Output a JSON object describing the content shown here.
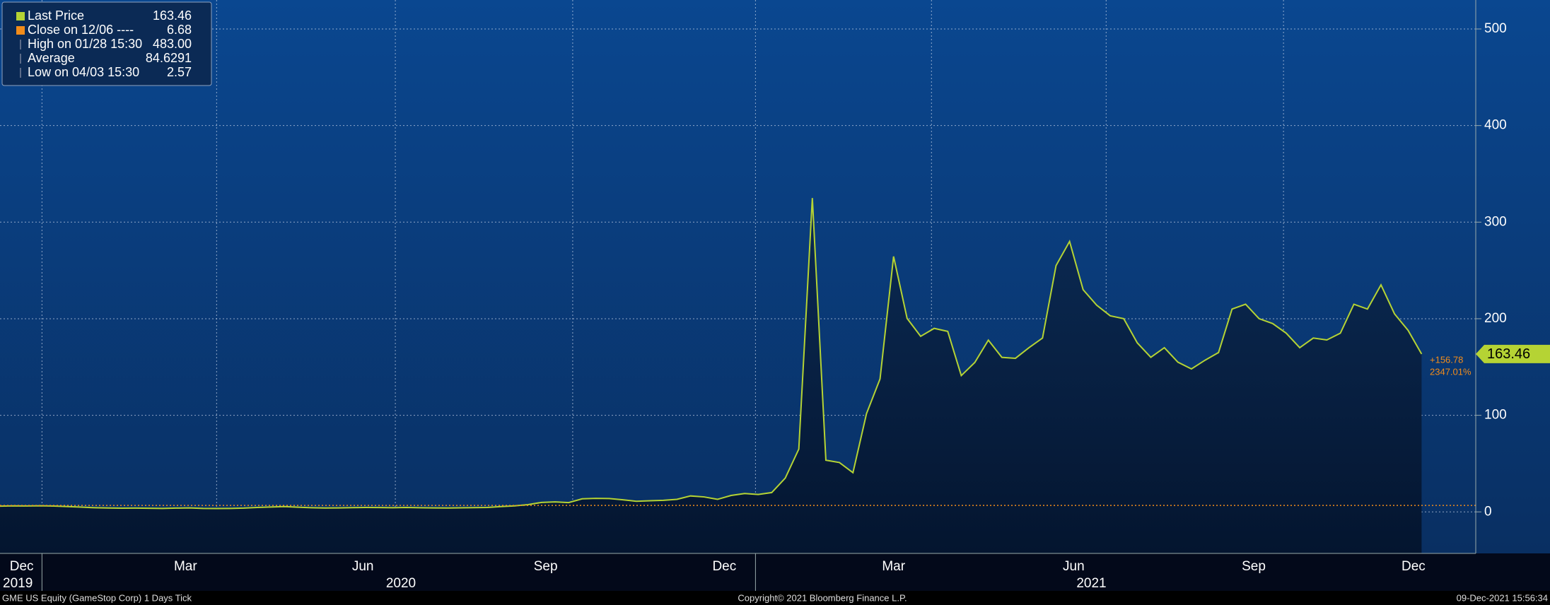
{
  "chart_data": {
    "type": "line",
    "series": [
      {
        "name": "Last Price",
        "color": "#b5d334",
        "values": [
          5.9,
          6.2,
          6.1,
          6.3,
          6.0,
          5.5,
          4.9,
          4.3,
          4.0,
          3.8,
          3.9,
          3.7,
          3.6,
          3.9,
          4.1,
          3.6,
          3.5,
          3.6,
          3.9,
          4.6,
          5.0,
          5.5,
          4.8,
          4.3,
          4.0,
          4.1,
          4.4,
          4.6,
          4.5,
          4.3,
          4.6,
          4.3,
          4.1,
          4.0,
          4.2,
          4.4,
          4.6,
          5.5,
          6.2,
          7.5,
          9.8,
          10.3,
          9.6,
          13.5,
          14.0,
          13.8,
          12.5,
          11.0,
          11.5,
          12.0,
          13.0,
          16.5,
          15.5,
          13.0,
          17.0,
          19.0,
          18.0,
          20.0,
          35.0,
          65.0,
          325.0,
          53.5,
          51.1,
          40.6,
          101.7,
          137.7,
          264.5,
          200.3,
          181.8,
          190.0,
          186.9,
          141.1,
          154.7,
          177.8,
          160,
          159,
          170,
          180,
          255,
          280,
          230,
          214,
          203,
          200,
          175,
          160,
          170,
          155,
          148,
          157,
          165,
          210,
          215,
          200,
          195,
          185,
          170,
          180,
          178,
          185,
          215,
          210,
          235,
          205,
          188,
          163.46
        ]
      }
    ],
    "reference_line": {
      "legend_label": "Close on 12/06 ----",
      "value": 6.68,
      "color": "#f28c1a"
    },
    "stats": [
      {
        "label": "High on 01/28 15:30",
        "value": "483.00"
      },
      {
        "label": "Average",
        "value": "84.6291"
      },
      {
        "label": "Low on 04/03 15:30",
        "value": "2.57"
      }
    ],
    "change": "+156.78",
    "change_pct": "2347.01%",
    "ylim": [
      -43,
      530
    ],
    "yticks": [
      0,
      100,
      200,
      300,
      400,
      500
    ],
    "xlim": [
      0,
      109
    ],
    "xticks": [
      {
        "value": 1.6,
        "label": "Dec"
      },
      {
        "value": 13.7,
        "label": "Mar"
      },
      {
        "value": 26.8,
        "label": "Jun"
      },
      {
        "value": 40.3,
        "label": "Sep"
      },
      {
        "value": 53.5,
        "label": "Dec"
      },
      {
        "value": 66,
        "label": "Mar"
      },
      {
        "value": 79.3,
        "label": "Jun"
      },
      {
        "value": 92.6,
        "label": "Sep"
      },
      {
        "value": 104.4,
        "label": "Dec"
      }
    ],
    "year_labels": [
      {
        "value": 0,
        "label": "2019"
      },
      {
        "value": 28.3,
        "label": "2020"
      },
      {
        "value": 79.3,
        "label": "2021"
      }
    ],
    "xgrid": [
      3.1,
      16,
      29.2,
      42.3,
      55.8,
      68.8,
      81.7,
      94.8
    ],
    "grid": true,
    "footer": {
      "left": "GME US Equity (GameStop Corp) 1 Days  Tick",
      "center": "Copyright© 2021 Bloomberg Finance L.P.",
      "right": "09-Dec-2021 15:56:34"
    }
  }
}
